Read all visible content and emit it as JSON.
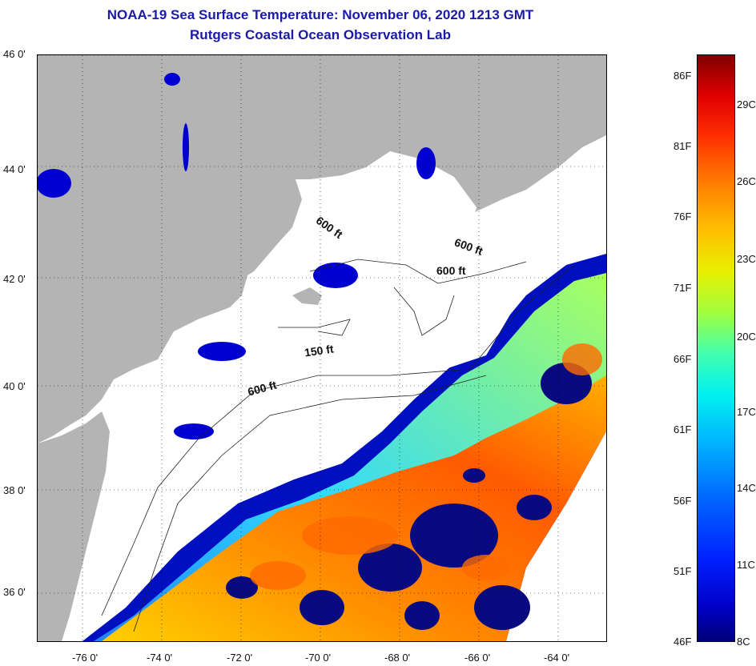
{
  "header": {
    "title": "NOAA-19 Sea Surface Temperature:  November 06, 2020 1213 GMT",
    "subtitle": "Rutgers Coastal Ocean Observation Lab"
  },
  "axes": {
    "latitude_labels": [
      "46 0'",
      "44 0'",
      "42 0'",
      "40 0'",
      "38 0'",
      "36 0'"
    ],
    "longitude_labels": [
      "-76 0'",
      "-74 0'",
      "-72 0'",
      "-70 0'",
      "-68 0'",
      "-66 0'",
      "-64 0'"
    ]
  },
  "isobaths": [
    {
      "label": "600 ft"
    },
    {
      "label": "600 ft"
    },
    {
      "label": "600 ft"
    },
    {
      "label": "150 ft"
    },
    {
      "label": "600 ft"
    }
  ],
  "colorbar": {
    "fahrenheit": [
      "86F",
      "81F",
      "76F",
      "71F",
      "66F",
      "61F",
      "56F",
      "51F",
      "46F"
    ],
    "celsius": [
      "29C",
      "26C",
      "23C",
      "20C",
      "17C",
      "14C",
      "11C",
      "8C"
    ]
  },
  "colors": {
    "land": "#b4b4b4",
    "water_no_data": "#ffffff",
    "title_text": "#1a1aa8"
  }
}
